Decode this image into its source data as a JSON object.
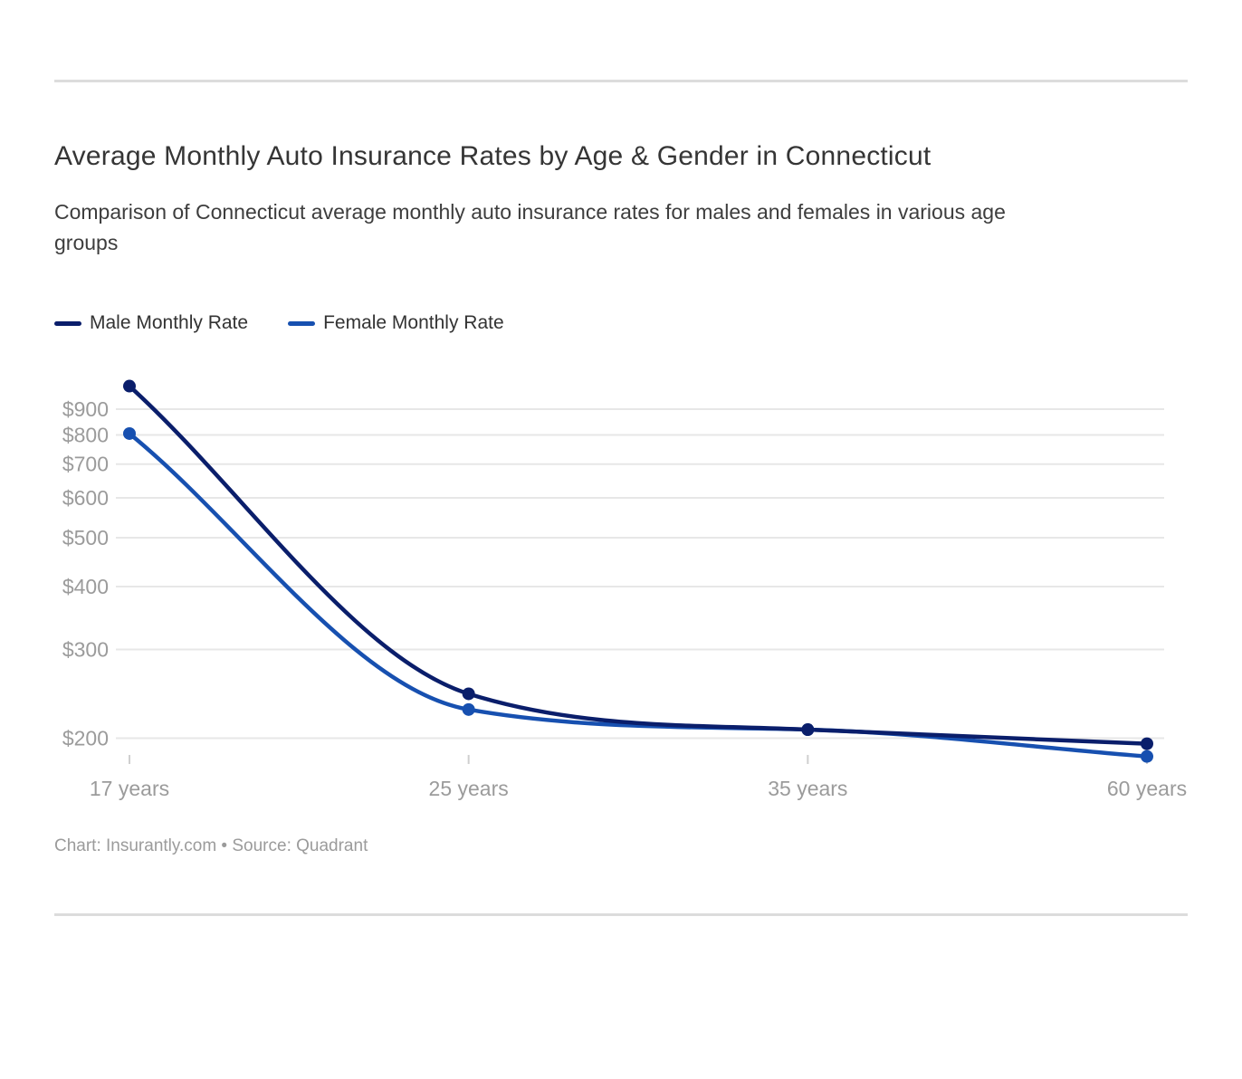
{
  "chart_data": {
    "type": "line",
    "title": "Average Monthly Auto Insurance Rates by Age & Gender in Connecticut",
    "subtitle": "Comparison of Connecticut average monthly auto insurance rates for males and females in various age groups",
    "subtitle_lines": [
      "Comparison of Connecticut average monthly auto insurance rates for males and females in various age",
      "groups"
    ],
    "categories": [
      "17 years",
      "25 years",
      "35 years",
      "60 years"
    ],
    "series": [
      {
        "name": "Male Monthly Rate",
        "color": "#0a1e6b",
        "values": [
          1000,
          245,
          208,
          195
        ]
      },
      {
        "name": "Female Monthly Rate",
        "color": "#1750b0",
        "values": [
          805,
          228,
          208,
          184
        ]
      }
    ],
    "y_axis": {
      "scale": "log",
      "tick_values": [
        900,
        800,
        700,
        600,
        500,
        400,
        300,
        200
      ],
      "tick_labels": [
        "$900",
        "$800",
        "$700",
        "$600",
        "$500",
        "$400",
        "$300",
        "$200"
      ]
    },
    "x_axis": {
      "tick_labels": [
        "17 years",
        "25 years",
        "35 years",
        "60 years"
      ]
    },
    "grid": true,
    "legend_position": "top-left"
  },
  "footer": {
    "text": "Chart: Insurantly.com • Source: Quadrant"
  },
  "colors": {
    "grid": "#e7e7e7",
    "tick": "#cfcfcf",
    "axis_text": "#9b9b9b"
  }
}
